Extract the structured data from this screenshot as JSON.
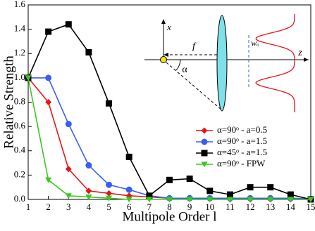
{
  "chart_data": {
    "type": "line",
    "xlabel": "Multipole Order l",
    "ylabel": "Relative Strength",
    "x": [
      1,
      2,
      3,
      4,
      5,
      6,
      7,
      8,
      9,
      10,
      11,
      12,
      13,
      14,
      15
    ],
    "series": [
      {
        "name": "α=90ᵒ - a=0.5",
        "color": "#e8141c",
        "marker": "diamond",
        "values": [
          1.0,
          0.8,
          0.25,
          0.07,
          0.05,
          0.03,
          0.02,
          0.01,
          0.01,
          0.005,
          0,
          0,
          0,
          0,
          0
        ]
      },
      {
        "name": "α=90ᵒ - a=1.5",
        "color": "#3a5ff0",
        "marker": "circle",
        "values": [
          1.0,
          1.0,
          0.62,
          0.28,
          0.12,
          0.08,
          0.03,
          0.01,
          0.01,
          0.01,
          0.01,
          0.01,
          0.01,
          0.01,
          0.005
        ]
      },
      {
        "name": "α=45ᵒ - a=1.5",
        "color": "#000000",
        "marker": "square",
        "values": [
          1.0,
          1.38,
          1.44,
          1.21,
          0.79,
          0.35,
          0.03,
          0.16,
          0.17,
          0.07,
          0.04,
          0.1,
          0.1,
          0.04,
          0.0
        ]
      },
      {
        "name": "α=90ᵒ - FPW",
        "color": "#3cc81e",
        "marker": "triangle-down",
        "values": [
          1.0,
          0.16,
          0.03,
          0.02,
          0.01,
          0,
          0,
          0,
          0,
          0,
          0,
          0,
          0,
          0,
          0
        ]
      }
    ],
    "xlim": [
      1,
      15
    ],
    "xticks": [
      1,
      2,
      3,
      4,
      5,
      6,
      7,
      8,
      9,
      10,
      11,
      12,
      13,
      14,
      15
    ],
    "ylim": [
      0,
      1.6
    ],
    "yticks": [
      {
        "value": 0,
        "label": "0.0"
      },
      0.2,
      0.4,
      0.6,
      0.8,
      {
        "value": 1,
        "label": "1.0"
      },
      1.2,
      1.4,
      1.6
    ],
    "legend": "lower right",
    "annotations": [
      "x",
      "f",
      "wₒ",
      "z",
      "α"
    ]
  }
}
